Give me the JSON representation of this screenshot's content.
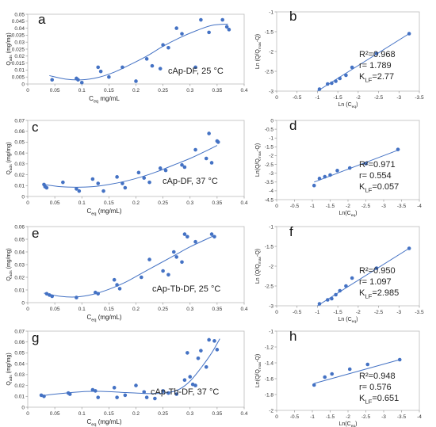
{
  "chart_data": [
    {
      "panel": "a",
      "type": "scatter",
      "annotation": [
        "cAp-DF, 25 °C"
      ],
      "xlabel": "C_eq mg/mL",
      "ylabel": "Q_ads (mg/mg)",
      "xlim": [
        0,
        0.4
      ],
      "ylim": [
        0,
        0.05
      ],
      "xticks": [
        "0",
        "0.05",
        "0.1",
        "0.15",
        "0.2",
        "0.25",
        "0.3",
        "0.35",
        "0.4"
      ],
      "yticks": [
        "0",
        "0.005",
        "0.01",
        "0.015",
        "0.02",
        "0.025",
        "0.03",
        "0.035",
        "0.04",
        "0.045",
        "0.05"
      ],
      "points": [
        [
          0.045,
          0.003
        ],
        [
          0.09,
          0.004
        ],
        [
          0.093,
          0.003
        ],
        [
          0.1,
          0.001
        ],
        [
          0.13,
          0.012
        ],
        [
          0.135,
          0.009
        ],
        [
          0.15,
          0.005
        ],
        [
          0.175,
          0.012
        ],
        [
          0.2,
          0.002
        ],
        [
          0.22,
          0.018
        ],
        [
          0.23,
          0.013
        ],
        [
          0.245,
          0.011
        ],
        [
          0.25,
          0.028
        ],
        [
          0.26,
          0.026
        ],
        [
          0.275,
          0.04
        ],
        [
          0.285,
          0.036
        ],
        [
          0.31,
          0.012
        ],
        [
          0.32,
          0.046
        ],
        [
          0.335,
          0.037
        ],
        [
          0.36,
          0.046
        ],
        [
          0.368,
          0.041
        ],
        [
          0.372,
          0.039
        ]
      ],
      "fit": [
        [
          0.04,
          0.006
        ],
        [
          0.07,
          0.0035
        ],
        [
          0.1,
          0.003
        ],
        [
          0.13,
          0.0047
        ],
        [
          0.16,
          0.0085
        ],
        [
          0.19,
          0.014
        ],
        [
          0.22,
          0.02
        ],
        [
          0.25,
          0.027
        ],
        [
          0.28,
          0.033
        ],
        [
          0.31,
          0.038
        ],
        [
          0.34,
          0.042
        ],
        [
          0.37,
          0.043
        ]
      ]
    },
    {
      "panel": "b",
      "type": "scatter",
      "annotation": [
        "R²=0.968",
        "r=  1.789",
        "K_LF=2.77"
      ],
      "xlabel": "Ln (C_eq)",
      "ylabel": "Ln (Q/Q_max-Q)",
      "xlim": [
        0,
        -3.5
      ],
      "ylim": [
        -3,
        -1
      ],
      "xticks": [
        "0",
        "-0.5",
        "-1",
        "-1.5",
        "-2",
        "-2.5",
        "-3",
        "-3.5"
      ],
      "yticks": [
        "-1",
        "-1.5",
        "-2",
        "-2.5",
        "-3"
      ],
      "points": [
        [
          -1.05,
          -2.95
        ],
        [
          -1.25,
          -2.82
        ],
        [
          -1.35,
          -2.8
        ],
        [
          -1.45,
          -2.75
        ],
        [
          -1.55,
          -2.68
        ],
        [
          -1.7,
          -2.6
        ],
        [
          -1.85,
          -2.4
        ],
        [
          -2.45,
          -2.05
        ],
        [
          -3.25,
          -1.55
        ]
      ],
      "fit": [
        [
          -1.0,
          -3.0
        ],
        [
          -3.25,
          -1.55
        ]
      ]
    },
    {
      "panel": "c",
      "type": "scatter",
      "annotation": [
        "cAp-DF, 37 °C"
      ],
      "xlabel": "C_eq (mg/mL)",
      "ylabel": "Q_ads (mg/mg)",
      "xlim": [
        0,
        0.4
      ],
      "ylim": [
        0,
        0.07
      ],
      "xticks": [
        "0",
        "0.05",
        "0.1",
        "0.15",
        "0.2",
        "0.25",
        "0.3",
        "0.35",
        "0.4"
      ],
      "yticks": [
        "0",
        "0.01",
        "0.02",
        "0.03",
        "0.04",
        "0.05",
        "0.06",
        "0.07"
      ],
      "points": [
        [
          0.03,
          0.011
        ],
        [
          0.032,
          0.009
        ],
        [
          0.035,
          0.008
        ],
        [
          0.065,
          0.013
        ],
        [
          0.09,
          0.007
        ],
        [
          0.095,
          0.005
        ],
        [
          0.12,
          0.016
        ],
        [
          0.13,
          0.012
        ],
        [
          0.14,
          0.005
        ],
        [
          0.165,
          0.018
        ],
        [
          0.175,
          0.012
        ],
        [
          0.18,
          0.008
        ],
        [
          0.205,
          0.022
        ],
        [
          0.215,
          0.017
        ],
        [
          0.225,
          0.013
        ],
        [
          0.245,
          0.026
        ],
        [
          0.255,
          0.024
        ],
        [
          0.285,
          0.029
        ],
        [
          0.29,
          0.027
        ],
        [
          0.31,
          0.043
        ],
        [
          0.33,
          0.035
        ],
        [
          0.335,
          0.058
        ],
        [
          0.34,
          0.031
        ],
        [
          0.35,
          0.051
        ],
        [
          0.352,
          0.05
        ]
      ],
      "fit": [
        [
          0.03,
          0.011
        ],
        [
          0.06,
          0.009
        ],
        [
          0.09,
          0.0085
        ],
        [
          0.12,
          0.009
        ],
        [
          0.15,
          0.011
        ],
        [
          0.18,
          0.014
        ],
        [
          0.21,
          0.018
        ],
        [
          0.24,
          0.023
        ],
        [
          0.27,
          0.029
        ],
        [
          0.3,
          0.035
        ],
        [
          0.33,
          0.042
        ],
        [
          0.35,
          0.047
        ]
      ]
    },
    {
      "panel": "d",
      "type": "scatter",
      "annotation": [
        "R²=0.971",
        "r=  0.554",
        "K_LF=0.057"
      ],
      "xlabel": "Ln(C_eq)",
      "ylabel": "Ln(Q/Q_max-Q)",
      "xlim": [
        0,
        -4
      ],
      "ylim": [
        -4.5,
        0
      ],
      "xticks": [
        "0",
        "-0.5",
        "-1",
        "-1.5",
        "-2",
        "-2.5",
        "-3",
        "-3.5",
        "-4"
      ],
      "yticks": [
        "0",
        "-0.5",
        "-1",
        "-1.5",
        "-2",
        "-2.5",
        "-3",
        "-3.5",
        "-4",
        "-4.5"
      ],
      "points": [
        [
          -1.05,
          -3.7
        ],
        [
          -1.2,
          -3.3
        ],
        [
          -1.35,
          -3.2
        ],
        [
          -1.5,
          -3.1
        ],
        [
          -1.7,
          -2.85
        ],
        [
          -2.05,
          -2.7
        ],
        [
          -2.5,
          -2.45
        ],
        [
          -3.4,
          -1.65
        ]
      ],
      "fit": [
        [
          -1.05,
          -3.5
        ],
        [
          -3.45,
          -1.65
        ]
      ]
    },
    {
      "panel": "e",
      "type": "scatter",
      "annotation": [
        "cAp-Tb-DF, 25 °C"
      ],
      "xlabel": "C_eq (mg/mL)",
      "ylabel": "Q_ads (mg/mg)",
      "xlim": [
        0,
        0.4
      ],
      "ylim": [
        0,
        0.06
      ],
      "xticks": [
        "0",
        "0.05",
        "0.1",
        "0.15",
        "0.2",
        "0.25",
        "0.3",
        "0.35",
        "0.4"
      ],
      "yticks": [
        "0",
        "0.01",
        "0.02",
        "0.03",
        "0.04",
        "0.05",
        "0.06"
      ],
      "points": [
        [
          0.035,
          0.007
        ],
        [
          0.04,
          0.006
        ],
        [
          0.045,
          0.005
        ],
        [
          0.09,
          0.004
        ],
        [
          0.125,
          0.008
        ],
        [
          0.13,
          0.007
        ],
        [
          0.16,
          0.018
        ],
        [
          0.165,
          0.014
        ],
        [
          0.17,
          0.011
        ],
        [
          0.21,
          0.02
        ],
        [
          0.225,
          0.034
        ],
        [
          0.25,
          0.025
        ],
        [
          0.26,
          0.022
        ],
        [
          0.27,
          0.04
        ],
        [
          0.275,
          0.036
        ],
        [
          0.285,
          0.032
        ],
        [
          0.29,
          0.054
        ],
        [
          0.295,
          0.052
        ],
        [
          0.31,
          0.048
        ],
        [
          0.34,
          0.054
        ],
        [
          0.345,
          0.052
        ]
      ],
      "fit": [
        [
          0.03,
          0.0075
        ],
        [
          0.06,
          0.005
        ],
        [
          0.09,
          0.0045
        ],
        [
          0.12,
          0.0065
        ],
        [
          0.15,
          0.0105
        ],
        [
          0.18,
          0.016
        ],
        [
          0.21,
          0.023
        ],
        [
          0.24,
          0.03
        ],
        [
          0.27,
          0.037
        ],
        [
          0.3,
          0.044
        ],
        [
          0.33,
          0.05
        ],
        [
          0.345,
          0.053
        ]
      ]
    },
    {
      "panel": "f",
      "type": "scatter",
      "annotation": [
        "R²=0.950",
        "r=  1.097",
        "K_LF=2.985"
      ],
      "xlabel": "Ln (C_eq)",
      "ylabel": "Ln (Q/Q_max-Q)",
      "xlim": [
        0,
        -3.5
      ],
      "ylim": [
        -3,
        -1
      ],
      "xticks": [
        "0",
        "-0.5",
        "-1",
        "-1.5",
        "-2",
        "-2.5",
        "-3",
        "-3.5"
      ],
      "yticks": [
        "-1",
        "-1.5",
        "-2",
        "-2.5",
        "-3"
      ],
      "points": [
        [
          -1.05,
          -2.95
        ],
        [
          -1.25,
          -2.85
        ],
        [
          -1.35,
          -2.82
        ],
        [
          -1.45,
          -2.72
        ],
        [
          -1.55,
          -2.62
        ],
        [
          -1.7,
          -2.5
        ],
        [
          -1.85,
          -2.3
        ],
        [
          -2.45,
          -2.05
        ],
        [
          -3.25,
          -1.55
        ]
      ],
      "fit": [
        [
          -1.0,
          -3.0
        ],
        [
          -3.25,
          -1.55
        ]
      ]
    },
    {
      "panel": "g",
      "type": "scatter",
      "annotation": [
        "cAp-Tb-DF, 37 °C"
      ],
      "xlabel": "C_eq (mg/mL)",
      "ylabel": "Q_ads (mg/mg)",
      "xlim": [
        0,
        0.4
      ],
      "ylim": [
        0,
        0.07
      ],
      "xticks": [
        "0",
        "0.05",
        "0.1",
        "0.15",
        "0.2",
        "0.25",
        "0.3",
        "0.35",
        "0.4"
      ],
      "yticks": [
        "0",
        "0.01",
        "0.02",
        "0.03",
        "0.04",
        "0.05",
        "0.06",
        "0.07"
      ],
      "points": [
        [
          0.025,
          0.011
        ],
        [
          0.03,
          0.01
        ],
        [
          0.075,
          0.013
        ],
        [
          0.078,
          0.012
        ],
        [
          0.12,
          0.016
        ],
        [
          0.125,
          0.015
        ],
        [
          0.13,
          0.009
        ],
        [
          0.16,
          0.018
        ],
        [
          0.165,
          0.009
        ],
        [
          0.18,
          0.011
        ],
        [
          0.2,
          0.02
        ],
        [
          0.215,
          0.014
        ],
        [
          0.22,
          0.009
        ],
        [
          0.235,
          0.008
        ],
        [
          0.25,
          0.015
        ],
        [
          0.26,
          0.013
        ],
        [
          0.275,
          0.012
        ],
        [
          0.29,
          0.025
        ],
        [
          0.295,
          0.05
        ],
        [
          0.3,
          0.028
        ],
        [
          0.305,
          0.021
        ],
        [
          0.31,
          0.02
        ],
        [
          0.315,
          0.045
        ],
        [
          0.32,
          0.052
        ],
        [
          0.33,
          0.037
        ],
        [
          0.335,
          0.062
        ],
        [
          0.345,
          0.061
        ],
        [
          0.35,
          0.053
        ]
      ],
      "fit": [
        [
          0.025,
          0.0105
        ],
        [
          0.05,
          0.012
        ],
        [
          0.08,
          0.0135
        ],
        [
          0.11,
          0.0145
        ],
        [
          0.14,
          0.0145
        ],
        [
          0.17,
          0.0138
        ],
        [
          0.2,
          0.013
        ],
        [
          0.23,
          0.0125
        ],
        [
          0.26,
          0.0135
        ],
        [
          0.28,
          0.0165
        ],
        [
          0.3,
          0.024
        ],
        [
          0.32,
          0.036
        ],
        [
          0.34,
          0.05
        ],
        [
          0.355,
          0.063
        ]
      ]
    },
    {
      "panel": "h",
      "type": "scatter",
      "annotation": [
        "R²=0.948",
        "r=  0.576",
        "K_LF=0.651"
      ],
      "xlabel": "Ln(C_eq)",
      "ylabel": "Ln(Q/Q_max-Q)",
      "xlim": [
        0,
        -4
      ],
      "ylim": [
        -2,
        -1
      ],
      "xticks": [
        "0",
        "-0.5",
        "-1",
        "-1.5",
        "-2",
        "-2.5",
        "-3",
        "-3.5",
        "-4"
      ],
      "yticks": [
        "-1",
        "-1.2",
        "-1.4",
        "-1.6",
        "-1.8",
        "-2"
      ],
      "points": [
        [
          -1.05,
          -1.68
        ],
        [
          -1.35,
          -1.58
        ],
        [
          -1.55,
          -1.54
        ],
        [
          -2.05,
          -1.48
        ],
        [
          -2.55,
          -1.42
        ],
        [
          -3.45,
          -1.36
        ]
      ],
      "fit": [
        [
          -1.05,
          -1.66
        ],
        [
          -3.45,
          -1.36
        ]
      ]
    }
  ]
}
